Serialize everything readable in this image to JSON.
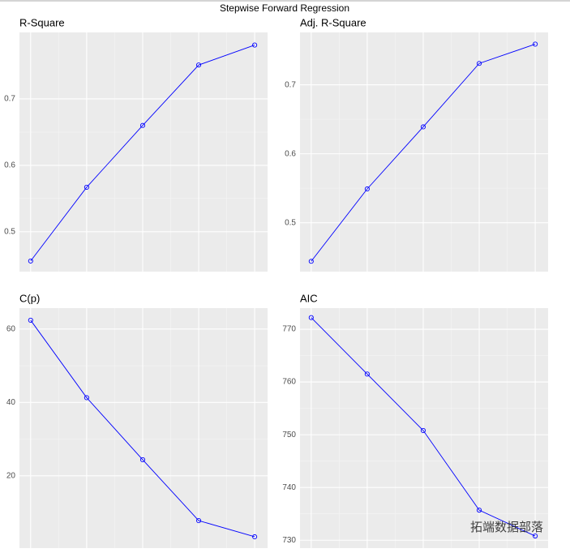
{
  "title": "Stepwise Forward Regression",
  "watermark": "拓端数据部落",
  "chart_data": [
    {
      "type": "line",
      "title": "R-Square",
      "x": [
        1,
        2,
        3,
        4,
        5
      ],
      "values": [
        0.456,
        0.567,
        0.66,
        0.751,
        0.781
      ],
      "color": "#0000ff",
      "marker": "circle",
      "xlim": [
        0.8,
        5.23
      ],
      "ylim": [
        0.44,
        0.8
      ],
      "yticks": [
        0.5,
        0.6,
        0.7
      ],
      "grid": true
    },
    {
      "type": "line",
      "title": "Adj. R-Square",
      "x": [
        1,
        2,
        3,
        4,
        5
      ],
      "values": [
        0.444,
        0.549,
        0.639,
        0.731,
        0.759
      ],
      "color": "#0000ff",
      "marker": "circle",
      "xlim": [
        0.8,
        5.23
      ],
      "ylim": [
        0.429,
        0.776
      ],
      "yticks": [
        0.5,
        0.6,
        0.7
      ],
      "grid": true
    },
    {
      "type": "line",
      "title": "C(p)",
      "x": [
        1,
        2,
        3,
        4,
        5
      ],
      "values": [
        62.4,
        41.3,
        24.4,
        7.8,
        3.4
      ],
      "color": "#0000ff",
      "marker": "circle",
      "xlim": [
        0.8,
        5.23
      ],
      "ylim": [
        0.3,
        65.7
      ],
      "yticks": [
        20,
        40,
        60
      ],
      "grid": true
    },
    {
      "type": "line",
      "title": "AIC",
      "x": [
        1,
        2,
        3,
        4,
        5
      ],
      "values": [
        772.2,
        761.5,
        750.8,
        735.7,
        730.8
      ],
      "color": "#0000ff",
      "marker": "circle",
      "xlim": [
        0.8,
        5.23
      ],
      "ylim": [
        728.5,
        774
      ],
      "yticks": [
        730,
        740,
        750,
        760,
        770
      ],
      "grid": true
    }
  ]
}
